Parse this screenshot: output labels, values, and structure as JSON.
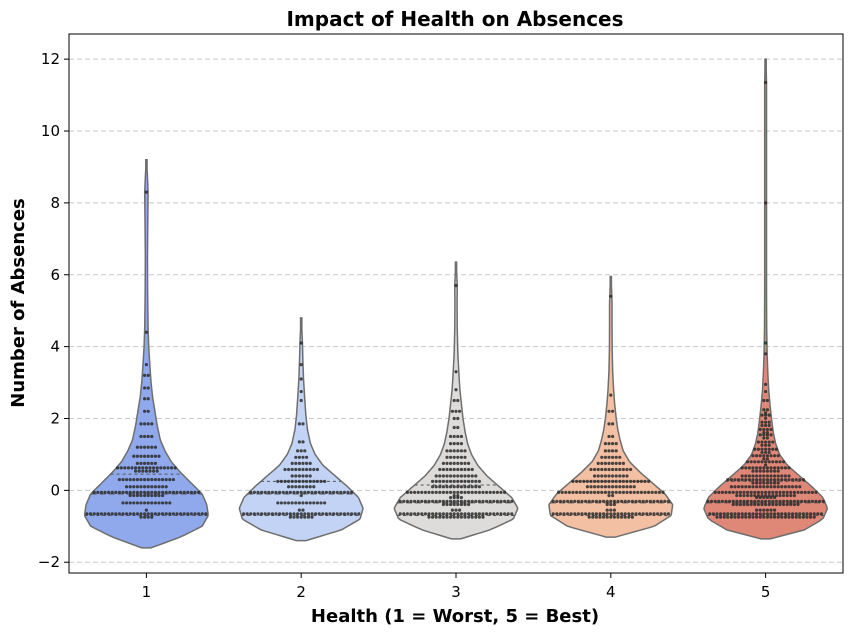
{
  "chart_data": {
    "type": "violin",
    "title": "Impact of Health on Absences",
    "xlabel": "Health (1 = Worst, 5 = Best)",
    "ylabel": "Number of Absences",
    "categories": [
      "1",
      "2",
      "3",
      "4",
      "5"
    ],
    "ylim": [
      -2.3,
      12.7
    ],
    "yticks": [
      -2,
      0,
      2,
      4,
      6,
      8,
      10,
      12
    ],
    "ytick_labels": [
      "−2",
      "0",
      "2",
      "4",
      "6",
      "8",
      "10",
      "12"
    ],
    "grid": "y-dashed",
    "colors": [
      "#8fa9ec",
      "#c2d3f5",
      "#dedcdb",
      "#f4c0a4",
      "#e08878"
    ],
    "series": [
      {
        "category": "1",
        "extent": [
          -1.6,
          9.2
        ],
        "quartiles": [
          -0.7,
          -0.1,
          0.45
        ],
        "max_halfwidth": 0.4,
        "profile": [
          [
            -1.6,
            0.03
          ],
          [
            -1.3,
            0.22
          ],
          [
            -1.0,
            0.36
          ],
          [
            -0.7,
            0.4
          ],
          [
            -0.4,
            0.39
          ],
          [
            -0.1,
            0.36
          ],
          [
            0.2,
            0.29
          ],
          [
            0.5,
            0.22
          ],
          [
            0.8,
            0.16
          ],
          [
            1.1,
            0.12
          ],
          [
            1.4,
            0.09
          ],
          [
            1.8,
            0.07
          ],
          [
            2.2,
            0.055
          ],
          [
            2.6,
            0.04
          ],
          [
            3.0,
            0.03
          ],
          [
            3.5,
            0.022
          ],
          [
            4.0,
            0.015
          ],
          [
            4.5,
            0.011
          ],
          [
            5.5,
            0.008
          ],
          [
            6.5,
            0.007
          ],
          [
            7.5,
            0.009
          ],
          [
            8.3,
            0.011
          ],
          [
            8.8,
            0.006
          ],
          [
            9.2,
            0.0
          ]
        ],
        "swarm": [
          [
            -0.7,
            38
          ],
          [
            -0.55,
            1
          ],
          [
            -0.35,
            14
          ],
          [
            -0.1,
            40
          ],
          [
            0.1,
            12
          ],
          [
            0.3,
            16
          ],
          [
            0.58,
            24
          ],
          [
            0.75,
            6
          ],
          [
            0.95,
            8
          ],
          [
            1.2,
            6
          ],
          [
            1.5,
            4
          ],
          [
            1.85,
            4
          ],
          [
            2.2,
            2
          ],
          [
            2.55,
            2
          ],
          [
            2.85,
            2
          ],
          [
            3.2,
            2
          ],
          [
            3.5,
            1
          ],
          [
            4.4,
            1
          ],
          [
            8.3,
            1
          ]
        ]
      },
      {
        "category": "2",
        "extent": [
          -1.4,
          4.8
        ],
        "quartiles": [
          -0.7,
          -0.1,
          0.25
        ],
        "max_halfwidth": 0.4,
        "profile": [
          [
            -1.4,
            0.03
          ],
          [
            -1.1,
            0.26
          ],
          [
            -0.8,
            0.38
          ],
          [
            -0.5,
            0.4
          ],
          [
            -0.2,
            0.37
          ],
          [
            0.1,
            0.3
          ],
          [
            0.4,
            0.22
          ],
          [
            0.7,
            0.14
          ],
          [
            1.0,
            0.09
          ],
          [
            1.3,
            0.06
          ],
          [
            1.7,
            0.04
          ],
          [
            2.1,
            0.03
          ],
          [
            2.6,
            0.022
          ],
          [
            3.1,
            0.015
          ],
          [
            3.6,
            0.011
          ],
          [
            4.1,
            0.008
          ],
          [
            4.5,
            0.004
          ],
          [
            4.8,
            0.0
          ]
        ],
        "swarm": [
          [
            -0.7,
            40
          ],
          [
            -0.55,
            2
          ],
          [
            -0.35,
            14
          ],
          [
            -0.1,
            30
          ],
          [
            0.1,
            8
          ],
          [
            0.25,
            14
          ],
          [
            0.4,
            6
          ],
          [
            0.58,
            10
          ],
          [
            0.75,
            6
          ],
          [
            0.92,
            4
          ],
          [
            1.1,
            3
          ],
          [
            1.35,
            2
          ],
          [
            1.85,
            2
          ],
          [
            2.5,
            1
          ],
          [
            2.75,
            1
          ],
          [
            3.1,
            1
          ],
          [
            3.5,
            1
          ],
          [
            4.1,
            1
          ]
        ]
      },
      {
        "category": "3",
        "extent": [
          -1.35,
          6.35
        ],
        "quartiles": [
          -0.7,
          -0.35,
          0.15
        ],
        "max_halfwidth": 0.4,
        "profile": [
          [
            -1.35,
            0.03
          ],
          [
            -1.1,
            0.22
          ],
          [
            -0.8,
            0.37
          ],
          [
            -0.5,
            0.4
          ],
          [
            -0.2,
            0.36
          ],
          [
            0.1,
            0.28
          ],
          [
            0.4,
            0.2
          ],
          [
            0.7,
            0.14
          ],
          [
            1.0,
            0.1
          ],
          [
            1.3,
            0.075
          ],
          [
            1.6,
            0.06
          ],
          [
            2.0,
            0.045
          ],
          [
            2.4,
            0.035
          ],
          [
            2.8,
            0.025
          ],
          [
            3.3,
            0.018
          ],
          [
            3.8,
            0.012
          ],
          [
            4.5,
            0.008
          ],
          [
            5.2,
            0.007
          ],
          [
            5.7,
            0.008
          ],
          [
            6.0,
            0.005
          ],
          [
            6.35,
            0.0
          ]
        ],
        "swarm": [
          [
            -0.7,
            48
          ],
          [
            -0.55,
            3
          ],
          [
            -0.35,
            40
          ],
          [
            -0.2,
            4
          ],
          [
            -0.1,
            30
          ],
          [
            0.1,
            14
          ],
          [
            0.25,
            14
          ],
          [
            0.4,
            12
          ],
          [
            0.58,
            10
          ],
          [
            0.75,
            8
          ],
          [
            0.92,
            6
          ],
          [
            1.1,
            6
          ],
          [
            1.3,
            4
          ],
          [
            1.5,
            4
          ],
          [
            1.75,
            2
          ],
          [
            2.0,
            2
          ],
          [
            2.2,
            3
          ],
          [
            2.5,
            2
          ],
          [
            2.8,
            1
          ],
          [
            3.3,
            1
          ],
          [
            5.7,
            1
          ]
        ]
      },
      {
        "category": "4",
        "extent": [
          -1.3,
          5.95
        ],
        "quartiles": [
          -0.7,
          -0.35,
          0.25
        ],
        "max_halfwidth": 0.4,
        "profile": [
          [
            -1.3,
            0.03
          ],
          [
            -1.0,
            0.28
          ],
          [
            -0.7,
            0.39
          ],
          [
            -0.4,
            0.4
          ],
          [
            -0.1,
            0.35
          ],
          [
            0.2,
            0.27
          ],
          [
            0.5,
            0.19
          ],
          [
            0.8,
            0.12
          ],
          [
            1.1,
            0.08
          ],
          [
            1.4,
            0.06
          ],
          [
            1.7,
            0.045
          ],
          [
            2.0,
            0.035
          ],
          [
            2.4,
            0.025
          ],
          [
            2.8,
            0.018
          ],
          [
            3.3,
            0.012
          ],
          [
            3.9,
            0.009
          ],
          [
            4.6,
            0.008
          ],
          [
            5.2,
            0.008
          ],
          [
            5.6,
            0.005
          ],
          [
            5.95,
            0.0
          ]
        ],
        "swarm": [
          [
            -0.7,
            46
          ],
          [
            -0.55,
            3
          ],
          [
            -0.35,
            36
          ],
          [
            -0.1,
            32
          ],
          [
            0.1,
            14
          ],
          [
            0.25,
            22
          ],
          [
            0.4,
            10
          ],
          [
            0.58,
            12
          ],
          [
            0.75,
            8
          ],
          [
            0.92,
            6
          ],
          [
            1.1,
            4
          ],
          [
            1.3,
            4
          ],
          [
            1.5,
            2
          ],
          [
            1.85,
            2
          ],
          [
            2.2,
            2
          ],
          [
            2.65,
            1
          ],
          [
            5.4,
            1
          ]
        ]
      },
      {
        "category": "5",
        "extent": [
          -1.35,
          12.0
        ],
        "quartiles": [
          -0.7,
          -0.35,
          0.25
        ],
        "max_halfwidth": 0.4,
        "profile": [
          [
            -1.35,
            0.03
          ],
          [
            -1.1,
            0.25
          ],
          [
            -0.8,
            0.37
          ],
          [
            -0.5,
            0.4
          ],
          [
            -0.2,
            0.37
          ],
          [
            0.1,
            0.3
          ],
          [
            0.4,
            0.22
          ],
          [
            0.7,
            0.14
          ],
          [
            1.0,
            0.09
          ],
          [
            1.3,
            0.065
          ],
          [
            1.6,
            0.05
          ],
          [
            2.0,
            0.038
          ],
          [
            2.4,
            0.028
          ],
          [
            2.8,
            0.02
          ],
          [
            3.3,
            0.014
          ],
          [
            3.8,
            0.01
          ],
          [
            4.5,
            0.007
          ],
          [
            5.5,
            0.006
          ],
          [
            6.5,
            0.006
          ],
          [
            7.5,
            0.006
          ],
          [
            8.5,
            0.006
          ],
          [
            9.5,
            0.006
          ],
          [
            10.5,
            0.006
          ],
          [
            11.3,
            0.006
          ],
          [
            11.7,
            0.004
          ],
          [
            12.0,
            0.0
          ]
        ],
        "swarm": [
          [
            -0.7,
            60
          ],
          [
            -0.55,
            6
          ],
          [
            -0.35,
            52
          ],
          [
            -0.2,
            6
          ],
          [
            -0.1,
            46
          ],
          [
            0.1,
            20
          ],
          [
            0.25,
            30
          ],
          [
            0.4,
            14
          ],
          [
            0.58,
            22
          ],
          [
            0.75,
            12
          ],
          [
            0.92,
            10
          ],
          [
            1.1,
            10
          ],
          [
            1.3,
            8
          ],
          [
            1.5,
            6
          ],
          [
            1.65,
            6
          ],
          [
            1.85,
            6
          ],
          [
            2.05,
            4
          ],
          [
            2.2,
            3
          ],
          [
            2.5,
            2
          ],
          [
            2.75,
            1
          ],
          [
            2.95,
            1
          ],
          [
            3.8,
            1
          ],
          [
            4.1,
            1
          ],
          [
            8.0,
            1
          ],
          [
            11.35,
            1
          ]
        ]
      }
    ]
  }
}
